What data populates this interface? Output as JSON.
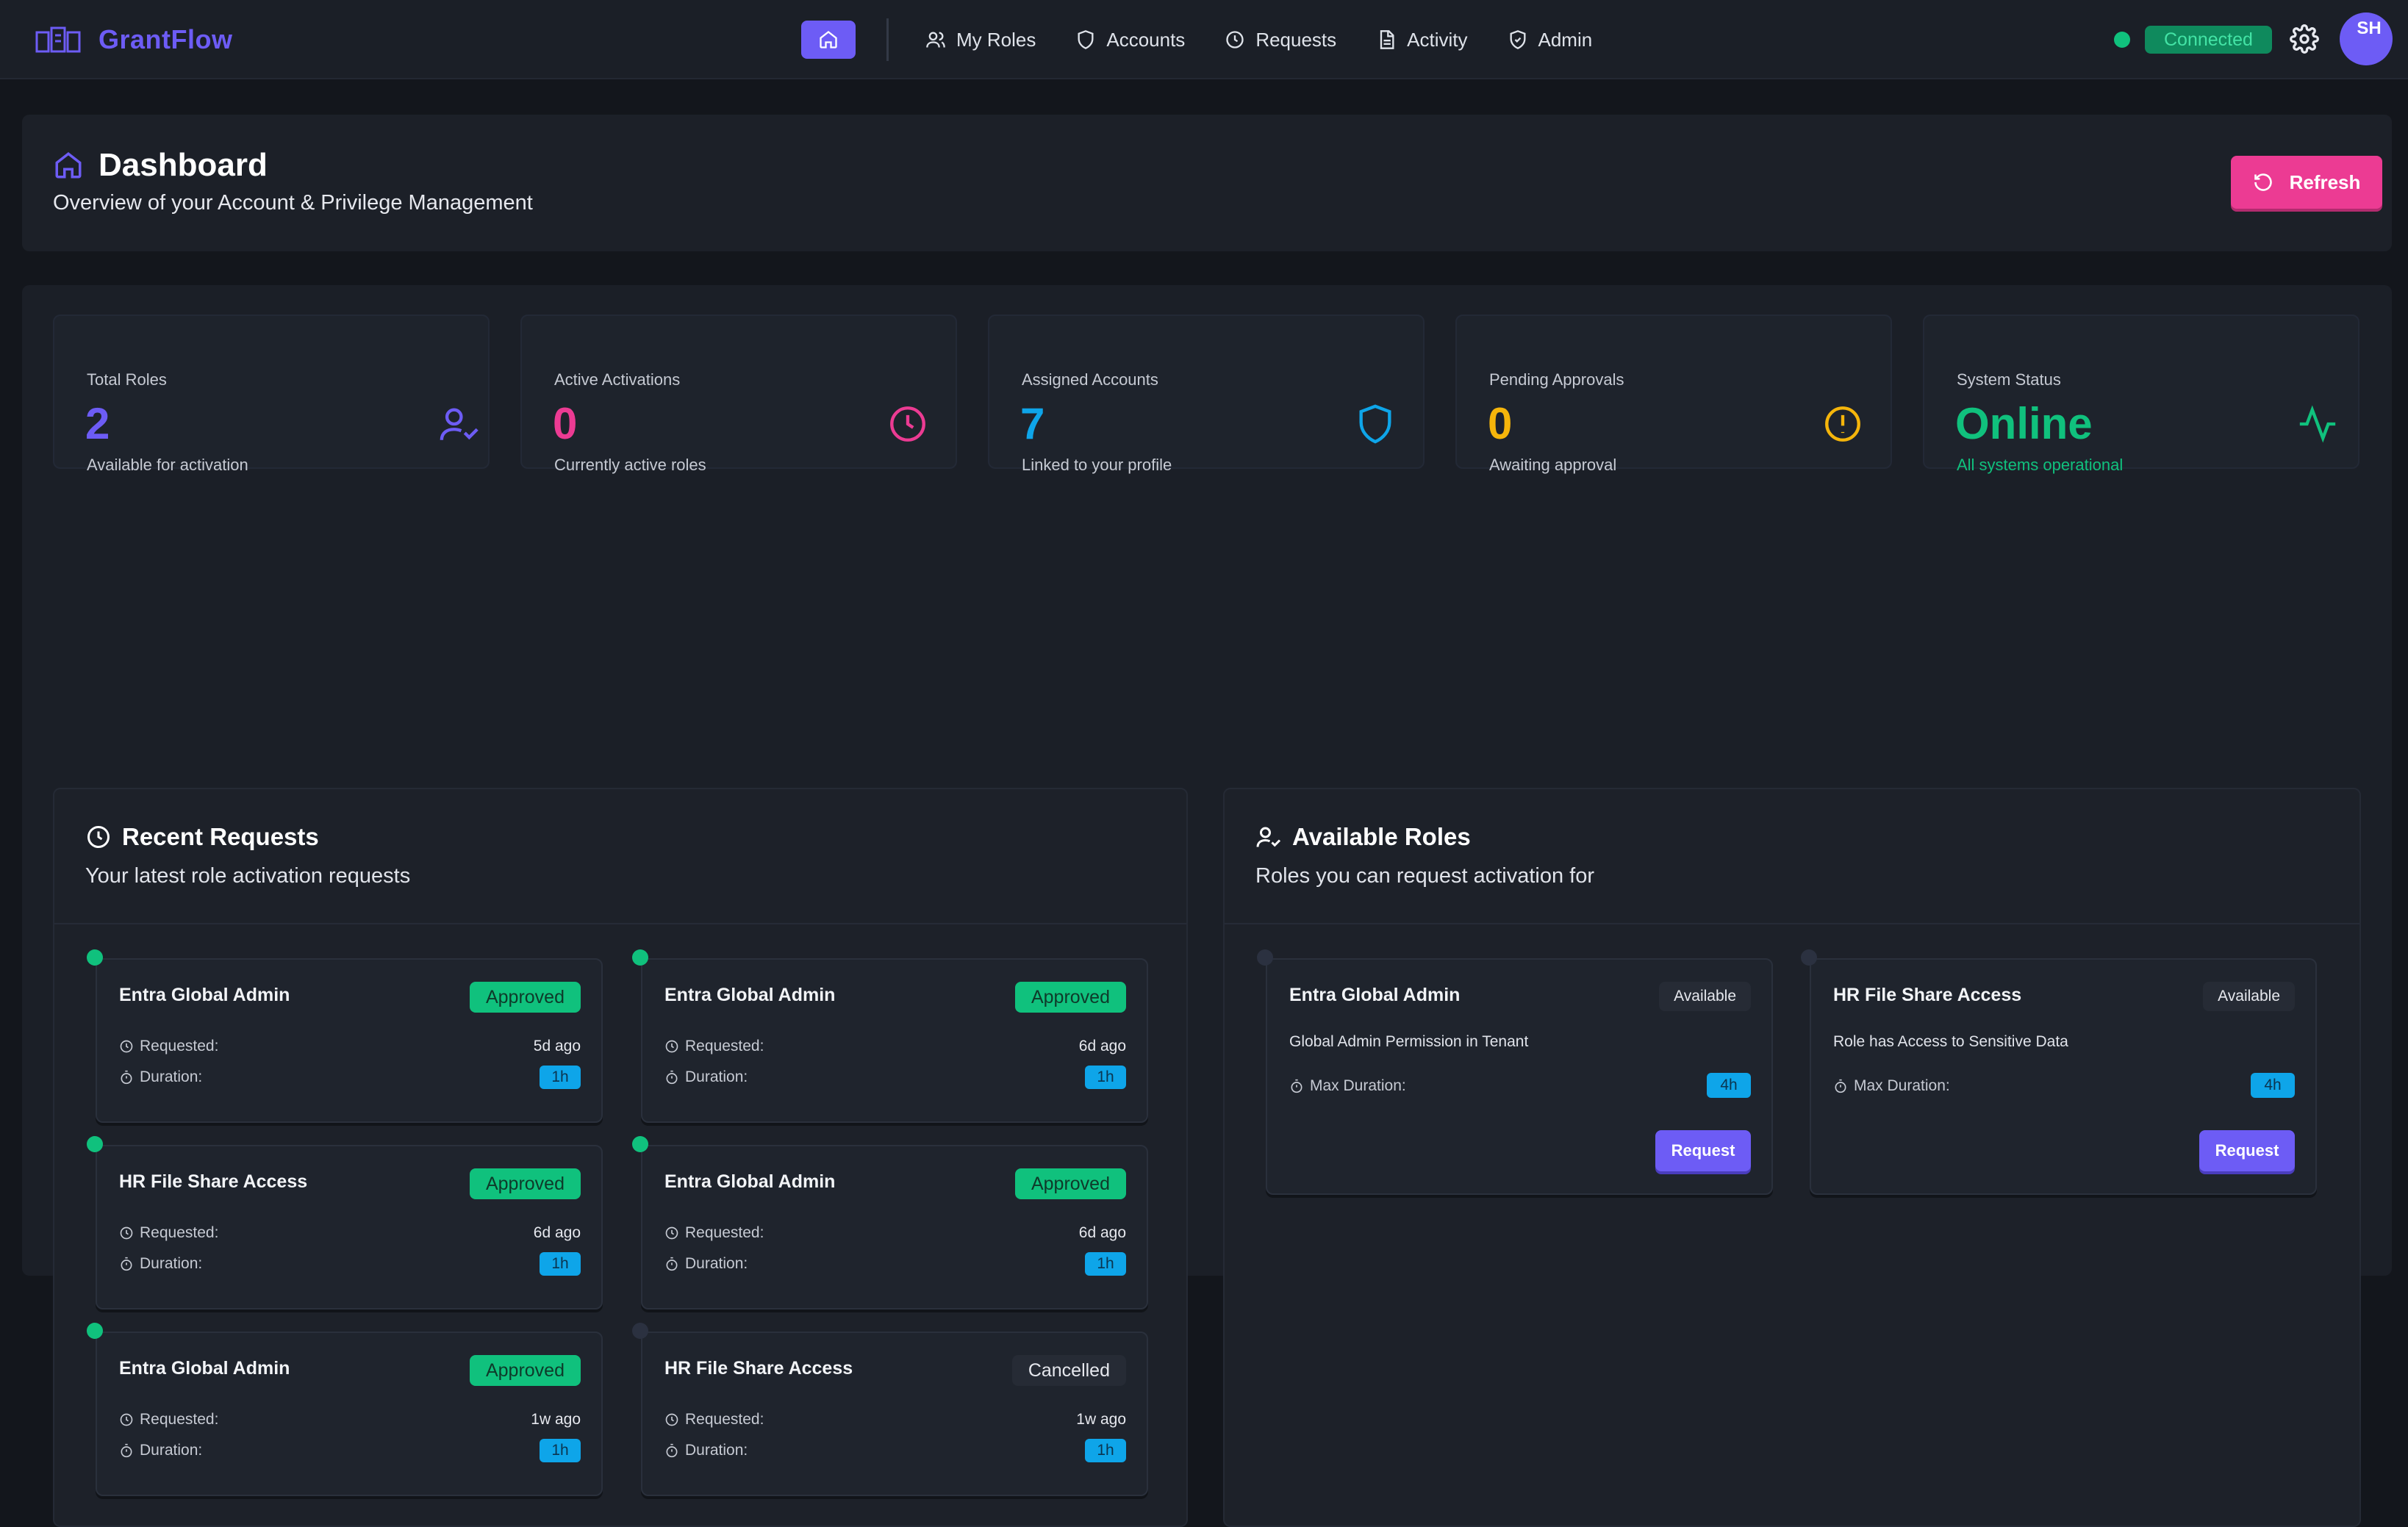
{
  "brand": {
    "name": "GrantFlow"
  },
  "nav": {
    "items": [
      {
        "label": "My Roles",
        "icon": "users-icon"
      },
      {
        "label": "Accounts",
        "icon": "shield-icon"
      },
      {
        "label": "Requests",
        "icon": "clock-icon"
      },
      {
        "label": "Activity",
        "icon": "document-icon"
      },
      {
        "label": "Admin",
        "icon": "shield-check-icon"
      }
    ]
  },
  "connection": {
    "label": "Connected"
  },
  "user": {
    "initials": "SH"
  },
  "header": {
    "title": "Dashboard",
    "subtitle": "Overview of your Account & Privilege Management",
    "refresh_label": "Refresh"
  },
  "stats": [
    {
      "label": "Total Roles",
      "value": "2",
      "sub": "Available for activation",
      "color": "#6d5cf5",
      "icon": "user-check-icon"
    },
    {
      "label": "Active Activations",
      "value": "0",
      "sub": "Currently active roles",
      "color": "#ec3b93",
      "icon": "clock-icon"
    },
    {
      "label": "Assigned Accounts",
      "value": "7",
      "sub": "Linked to your profile",
      "color": "#0ea5e9",
      "icon": "shield-icon"
    },
    {
      "label": "Pending Approvals",
      "value": "0",
      "sub": "Awaiting approval",
      "color": "#f5b50b",
      "icon": "alert-circle-icon"
    },
    {
      "label": "System Status",
      "value": "Online",
      "sub": "All systems operational",
      "color": "#10c17d",
      "icon": "activity-icon"
    }
  ],
  "recent": {
    "title": "Recent Requests",
    "subtitle": "Your latest role activation requests",
    "requested_label": "Requested:",
    "duration_label": "Duration:",
    "items": [
      {
        "title": "Entra Global Admin",
        "status": "Approved",
        "ago": "5d ago",
        "duration": "1h"
      },
      {
        "title": "Entra Global Admin",
        "status": "Approved",
        "ago": "6d ago",
        "duration": "1h"
      },
      {
        "title": "HR File Share Access",
        "status": "Approved",
        "ago": "6d ago",
        "duration": "1h"
      },
      {
        "title": "Entra Global Admin",
        "status": "Approved",
        "ago": "6d ago",
        "duration": "1h"
      },
      {
        "title": "Entra Global Admin",
        "status": "Approved",
        "ago": "1w ago",
        "duration": "1h"
      },
      {
        "title": "HR File Share Access",
        "status": "Cancelled",
        "ago": "1w ago",
        "duration": "1h"
      }
    ]
  },
  "roles": {
    "title": "Available Roles",
    "subtitle": "Roles you can request activation for",
    "max_duration_label": "Max Duration:",
    "items": [
      {
        "title": "Entra Global Admin",
        "badge": "Available",
        "desc": "Global Admin Permission in Tenant",
        "max": "4h",
        "button": "Request"
      },
      {
        "title": "HR File Share Access",
        "badge": "Available",
        "desc": "Role has Access to Sensitive Data",
        "max": "4h",
        "button": "Request"
      }
    ]
  }
}
